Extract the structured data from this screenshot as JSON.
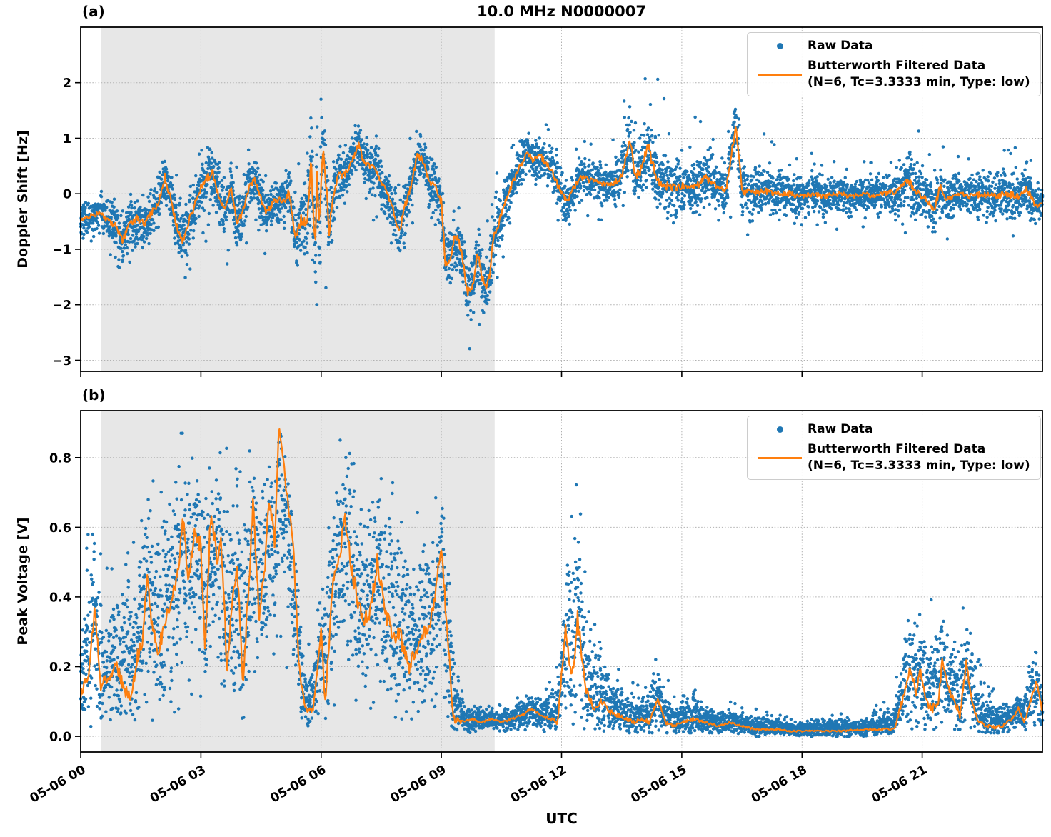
{
  "figure": {
    "title": "10.0 MHz N0000007",
    "xlabel": "UTC"
  },
  "chart_data": [
    {
      "type": "scatter",
      "panel_id": "a",
      "panel_tag": "(a)",
      "title": "10.0 MHz N0000007",
      "ylabel": "Doppler Shift [Hz]",
      "xlabel": "UTC",
      "x_unit": "decimal hours UTC on 05-06",
      "xlim": [
        0,
        24
      ],
      "ylim": [
        -3.2,
        3.0
      ],
      "xticks": [
        0,
        3,
        6,
        9,
        12,
        15,
        18,
        21
      ],
      "xtick_labels": [
        "05-06 00",
        "05-06 03",
        "05-06 06",
        "05-06 09",
        "05-06 12",
        "05-06 15",
        "05-06 18",
        "05-06 21"
      ],
      "yticks": [
        -3,
        -2,
        -1,
        0,
        1,
        2
      ],
      "ytick_labels": [
        "−3",
        "−2",
        "−1",
        "0",
        "1",
        "2"
      ],
      "grid": true,
      "shaded_region": {
        "x0": 0.5,
        "x1": 10.33,
        "color": "#e7e7e7"
      },
      "legend": {
        "position": "upper right",
        "raw_label": "Raw Data",
        "filtered_label": "Butterworth Filtered Data",
        "filtered_sublabel": "(N=6, Tc=3.3333 min, Type: low)"
      },
      "series_info": [
        {
          "name": "Raw Data",
          "type": "scatter",
          "color": "#1f77b4"
        },
        {
          "name": "Butterworth Filtered Data",
          "type": "line",
          "color": "#ff7f0e"
        }
      ],
      "filtered": {
        "t": [
          0,
          0.25,
          0.5,
          0.7,
          0.9,
          1.05,
          1.2,
          1.4,
          1.6,
          1.8,
          1.95,
          2.1,
          2.25,
          2.4,
          2.55,
          2.7,
          2.85,
          3.0,
          3.15,
          3.3,
          3.45,
          3.6,
          3.75,
          3.9,
          4.05,
          4.2,
          4.35,
          4.5,
          4.65,
          4.8,
          4.95,
          5.1,
          5.2,
          5.35,
          5.5,
          5.65,
          5.75,
          5.85,
          5.9,
          5.95,
          6.05,
          6.15,
          6.2,
          6.3,
          6.45,
          6.55,
          6.65,
          6.75,
          6.85,
          6.95,
          7.05,
          7.2,
          7.35,
          7.5,
          7.65,
          7.8,
          7.95,
          8.1,
          8.25,
          8.4,
          8.55,
          8.7,
          8.85,
          9.0,
          9.1,
          9.2,
          9.35,
          9.5,
          9.65,
          9.8,
          9.9,
          10.0,
          10.1,
          10.2,
          10.3,
          10.45,
          10.6,
          10.75,
          10.9,
          11.05,
          11.15,
          11.3,
          11.45,
          11.6,
          11.75,
          11.9,
          12.05,
          12.15,
          12.3,
          12.5,
          12.7,
          12.9,
          13.1,
          13.3,
          13.5,
          13.7,
          13.85,
          14.0,
          14.15,
          14.35,
          14.55,
          14.75,
          15.0,
          15.3,
          15.6,
          15.9,
          16.1,
          16.35,
          16.5,
          16.8,
          17.1,
          17.4,
          17.7,
          18.0,
          18.3,
          18.6,
          18.9,
          19.2,
          19.5,
          19.8,
          20.1,
          20.4,
          20.65,
          20.9,
          21.1,
          21.3,
          21.45,
          21.6,
          21.9,
          22.2,
          22.5,
          22.8,
          23.1,
          23.4,
          23.6,
          23.85,
          24.0
        ],
        "y": [
          -0.45,
          -0.4,
          -0.35,
          -0.5,
          -0.6,
          -0.85,
          -0.55,
          -0.45,
          -0.55,
          -0.3,
          -0.15,
          0.3,
          -0.1,
          -0.6,
          -0.85,
          -0.5,
          -0.2,
          0.1,
          0.3,
          0.35,
          -0.05,
          -0.3,
          0.1,
          -0.55,
          -0.3,
          0.1,
          0.25,
          -0.1,
          -0.35,
          -0.15,
          -0.1,
          -0.15,
          0.05,
          -0.8,
          -0.45,
          -0.55,
          0.6,
          -1.0,
          0.4,
          -0.65,
          0.9,
          -0.1,
          -0.7,
          0.0,
          0.35,
          0.3,
          0.4,
          0.55,
          0.75,
          0.9,
          0.6,
          0.5,
          0.45,
          0.2,
          0.0,
          -0.3,
          -0.7,
          -0.2,
          0.15,
          0.7,
          0.6,
          0.2,
          0.1,
          -0.15,
          -1.25,
          -1.2,
          -0.75,
          -1.0,
          -1.8,
          -1.6,
          -1.05,
          -1.45,
          -1.7,
          -1.45,
          -0.8,
          -0.5,
          -0.15,
          0.15,
          0.4,
          0.6,
          0.75,
          0.6,
          0.7,
          0.55,
          0.45,
          0.15,
          -0.05,
          -0.15,
          0.1,
          0.3,
          0.25,
          0.2,
          0.15,
          0.2,
          0.3,
          1.0,
          0.3,
          0.45,
          0.9,
          0.3,
          0.15,
          0.1,
          0.15,
          0.1,
          0.3,
          0.1,
          0.05,
          1.25,
          0.05,
          0.0,
          0.05,
          0.0,
          0.0,
          -0.05,
          0.0,
          -0.05,
          0.0,
          -0.05,
          0.0,
          -0.05,
          0.0,
          0.05,
          0.25,
          0.0,
          -0.1,
          -0.3,
          0.15,
          -0.1,
          0.0,
          -0.05,
          0.0,
          -0.05,
          0.0,
          -0.05,
          0.1,
          -0.25,
          -0.15
        ]
      },
      "raw_band": {
        "t": [
          0,
          0.5,
          1,
          1.5,
          2,
          2.3,
          2.6,
          3,
          3.3,
          3.6,
          4,
          4.3,
          4.7,
          5,
          5.4,
          5.7,
          6,
          6.2,
          6.5,
          6.9,
          7.2,
          7.5,
          7.8,
          8,
          8.3,
          8.5,
          8.8,
          9.1,
          9.4,
          9.7,
          10,
          10.3,
          10.6,
          11,
          11.3,
          11.6,
          11.9,
          12.2,
          12.5,
          12.9,
          13.2,
          13.6,
          13.9,
          14.2,
          14.5,
          14.8,
          15.1,
          15.5,
          15.8,
          16.1,
          16.35,
          16.6,
          17,
          17.5,
          18,
          18.5,
          19,
          19.5,
          20,
          20.5,
          20.8,
          21.2,
          21.5,
          22,
          22.5,
          23,
          23.4,
          23.7,
          24
        ],
        "ymin": [
          -1.1,
          -1.2,
          -1.6,
          -1.5,
          -1.3,
          -1.2,
          -1.7,
          -1.0,
          -0.9,
          -1.3,
          -1.3,
          -0.9,
          -1.2,
          -1.0,
          -1.9,
          -2.4,
          -2.3,
          -1.8,
          -0.7,
          -0.3,
          -0.4,
          -0.8,
          -1.4,
          -1.6,
          -0.5,
          -0.2,
          -0.8,
          -2.0,
          -2.6,
          -3.0,
          -2.7,
          -2.2,
          -1.0,
          -0.3,
          -0.3,
          -0.2,
          -0.8,
          -0.9,
          -0.4,
          -0.6,
          -0.4,
          -0.3,
          -0.2,
          -0.3,
          -0.6,
          -0.9,
          -0.5,
          -0.6,
          -0.7,
          -0.6,
          -0.5,
          -0.9,
          -0.7,
          -0.8,
          -0.8,
          -0.6,
          -0.7,
          -0.6,
          -0.6,
          -0.7,
          -0.9,
          -0.8,
          -0.9,
          -0.7,
          -0.8,
          -0.7,
          -1.0,
          -0.9,
          -0.8
        ],
        "ymax": [
          0.1,
          0.2,
          0.2,
          0.3,
          0.6,
          0.7,
          0.3,
          1.0,
          1.65,
          0.6,
          0.7,
          0.9,
          0.4,
          0.4,
          0.6,
          1.3,
          1.75,
          1.2,
          1.1,
          1.5,
          1.2,
          1.0,
          0.3,
          0.4,
          1.3,
          1.65,
          1.0,
          0.3,
          -0.2,
          -0.7,
          -0.5,
          0.2,
          0.8,
          1.3,
          1.55,
          1.3,
          0.9,
          0.6,
          1.0,
          0.9,
          0.9,
          1.9,
          2.1,
          2.75,
          1.9,
          1.3,
          1.3,
          1.6,
          1.1,
          1.0,
          1.55,
          0.9,
          1.1,
          0.9,
          0.7,
          0.8,
          0.7,
          0.6,
          0.7,
          1.0,
          1.3,
          0.9,
          0.9,
          0.7,
          0.8,
          1.0,
          0.9,
          0.8,
          0.5
        ]
      }
    },
    {
      "type": "scatter",
      "panel_id": "b",
      "panel_tag": "(b)",
      "ylabel": "Peak Voltage [V]",
      "xlabel": "UTC",
      "x_unit": "decimal hours UTC on 05-06",
      "xlim": [
        0,
        24
      ],
      "ylim": [
        -0.045,
        0.935
      ],
      "xticks": [
        0,
        3,
        6,
        9,
        12,
        15,
        18,
        21
      ],
      "xtick_labels": [
        "05-06 00",
        "05-06 03",
        "05-06 06",
        "05-06 09",
        "05-06 12",
        "05-06 15",
        "05-06 18",
        "05-06 21"
      ],
      "yticks": [
        0.0,
        0.2,
        0.4,
        0.6,
        0.8
      ],
      "ytick_labels": [
        "0.0",
        "0.2",
        "0.4",
        "0.6",
        "0.8"
      ],
      "grid": true,
      "shaded_region": {
        "x0": 0.5,
        "x1": 10.33,
        "color": "#e7e7e7"
      },
      "legend": {
        "position": "upper right",
        "raw_label": "Raw Data",
        "filtered_label": "Butterworth Filtered Data",
        "filtered_sublabel": "(N=6, Tc=3.3333 min, Type: low)"
      },
      "series_info": [
        {
          "name": "Raw Data",
          "type": "scatter",
          "color": "#1f77b4"
        },
        {
          "name": "Butterworth Filtered Data",
          "type": "line",
          "color": "#ff7f0e"
        }
      ],
      "filtered": {
        "t": [
          0,
          0.2,
          0.35,
          0.5,
          0.7,
          0.9,
          1.1,
          1.25,
          1.4,
          1.55,
          1.65,
          1.8,
          1.95,
          2.1,
          2.25,
          2.4,
          2.55,
          2.7,
          2.85,
          3.0,
          3.1,
          3.25,
          3.4,
          3.5,
          3.65,
          3.8,
          3.9,
          4.05,
          4.2,
          4.3,
          4.45,
          4.6,
          4.7,
          4.85,
          4.95,
          5.1,
          5.3,
          5.45,
          5.6,
          5.8,
          6.0,
          6.1,
          6.3,
          6.5,
          6.6,
          6.8,
          7.0,
          7.2,
          7.4,
          7.6,
          7.8,
          8.0,
          8.2,
          8.4,
          8.6,
          8.8,
          9.0,
          9.15,
          9.3,
          9.5,
          9.75,
          10.0,
          10.25,
          10.5,
          10.75,
          11.0,
          11.25,
          11.5,
          11.7,
          11.9,
          12.1,
          12.25,
          12.4,
          12.6,
          12.8,
          13.0,
          13.2,
          13.4,
          13.6,
          13.8,
          14.0,
          14.2,
          14.4,
          14.6,
          14.8,
          15.0,
          15.3,
          15.6,
          15.9,
          16.2,
          16.5,
          16.8,
          17.1,
          17.4,
          17.7,
          18.0,
          18.5,
          19.0,
          19.5,
          20.0,
          20.3,
          20.5,
          20.6,
          20.7,
          20.85,
          20.95,
          21.1,
          21.25,
          21.4,
          21.5,
          21.65,
          21.8,
          21.95,
          22.1,
          22.25,
          22.4,
          22.6,
          22.8,
          23.0,
          23.25,
          23.4,
          23.55,
          23.7,
          23.85,
          24.0
        ],
        "y": [
          0.12,
          0.18,
          0.37,
          0.15,
          0.17,
          0.2,
          0.13,
          0.11,
          0.22,
          0.28,
          0.46,
          0.3,
          0.25,
          0.32,
          0.38,
          0.45,
          0.62,
          0.45,
          0.6,
          0.54,
          0.25,
          0.65,
          0.5,
          0.57,
          0.2,
          0.4,
          0.49,
          0.15,
          0.45,
          0.67,
          0.35,
          0.5,
          0.69,
          0.55,
          0.89,
          0.74,
          0.56,
          0.2,
          0.08,
          0.07,
          0.3,
          0.1,
          0.45,
          0.55,
          0.62,
          0.45,
          0.35,
          0.33,
          0.5,
          0.35,
          0.3,
          0.28,
          0.2,
          0.25,
          0.3,
          0.35,
          0.55,
          0.3,
          0.05,
          0.04,
          0.05,
          0.04,
          0.05,
          0.04,
          0.05,
          0.06,
          0.08,
          0.06,
          0.05,
          0.04,
          0.31,
          0.15,
          0.34,
          0.13,
          0.08,
          0.1,
          0.07,
          0.06,
          0.05,
          0.04,
          0.05,
          0.04,
          0.11,
          0.04,
          0.03,
          0.04,
          0.05,
          0.04,
          0.03,
          0.04,
          0.03,
          0.02,
          0.02,
          0.02,
          0.015,
          0.015,
          0.015,
          0.015,
          0.02,
          0.02,
          0.02,
          0.1,
          0.14,
          0.2,
          0.12,
          0.19,
          0.1,
          0.08,
          0.09,
          0.22,
          0.14,
          0.1,
          0.06,
          0.21,
          0.1,
          0.04,
          0.03,
          0.025,
          0.03,
          0.05,
          0.08,
          0.04,
          0.1,
          0.16,
          0.07
        ]
      },
      "raw_band": {
        "t": [
          0,
          0.3,
          0.6,
          1,
          1.5,
          2,
          2.5,
          3,
          3.5,
          4,
          4.5,
          5,
          5.3,
          5.6,
          5.9,
          6.1,
          6.4,
          6.8,
          7.2,
          7.6,
          8,
          8.4,
          8.8,
          9.1,
          9.35,
          9.6,
          10,
          10.5,
          11,
          11.5,
          12,
          12.15,
          12.4,
          12.7,
          13,
          13.5,
          14,
          14.4,
          14.8,
          15.3,
          15.8,
          16.3,
          16.8,
          17.5,
          18.5,
          19.5,
          20.3,
          20.6,
          21,
          21.3,
          21.6,
          22,
          22.2,
          22.6,
          23,
          23.5,
          23.8,
          24
        ],
        "ymin": [
          0.02,
          0.03,
          0.03,
          0.03,
          0.04,
          0.05,
          0.06,
          0.05,
          0.05,
          0.05,
          0.08,
          0.1,
          0.05,
          0.03,
          0.03,
          0.05,
          0.1,
          0.1,
          0.08,
          0.06,
          0.05,
          0.05,
          0.05,
          0.04,
          0.02,
          0.01,
          0.01,
          0.01,
          0.01,
          0.01,
          0.02,
          0.02,
          0.02,
          0.02,
          0.01,
          0.01,
          0.01,
          0.01,
          0.01,
          0.01,
          0.01,
          0.01,
          0.0,
          0.0,
          0.0,
          0.0,
          0.01,
          0.02,
          0.02,
          0.02,
          0.02,
          0.02,
          0.02,
          0.01,
          0.01,
          0.01,
          0.01,
          0.01
        ],
        "ymax": [
          0.45,
          0.67,
          0.5,
          0.55,
          0.72,
          0.8,
          0.87,
          0.87,
          0.82,
          0.87,
          0.88,
          0.9,
          0.6,
          0.25,
          0.35,
          0.55,
          0.85,
          0.88,
          0.8,
          0.85,
          0.88,
          0.65,
          0.75,
          0.8,
          0.3,
          0.1,
          0.1,
          0.09,
          0.12,
          0.13,
          0.3,
          0.65,
          0.77,
          0.45,
          0.3,
          0.2,
          0.15,
          0.24,
          0.12,
          0.16,
          0.1,
          0.1,
          0.08,
          0.06,
          0.06,
          0.07,
          0.12,
          0.38,
          0.36,
          0.45,
          0.32,
          0.38,
          0.3,
          0.18,
          0.12,
          0.14,
          0.28,
          0.2
        ]
      }
    }
  ]
}
